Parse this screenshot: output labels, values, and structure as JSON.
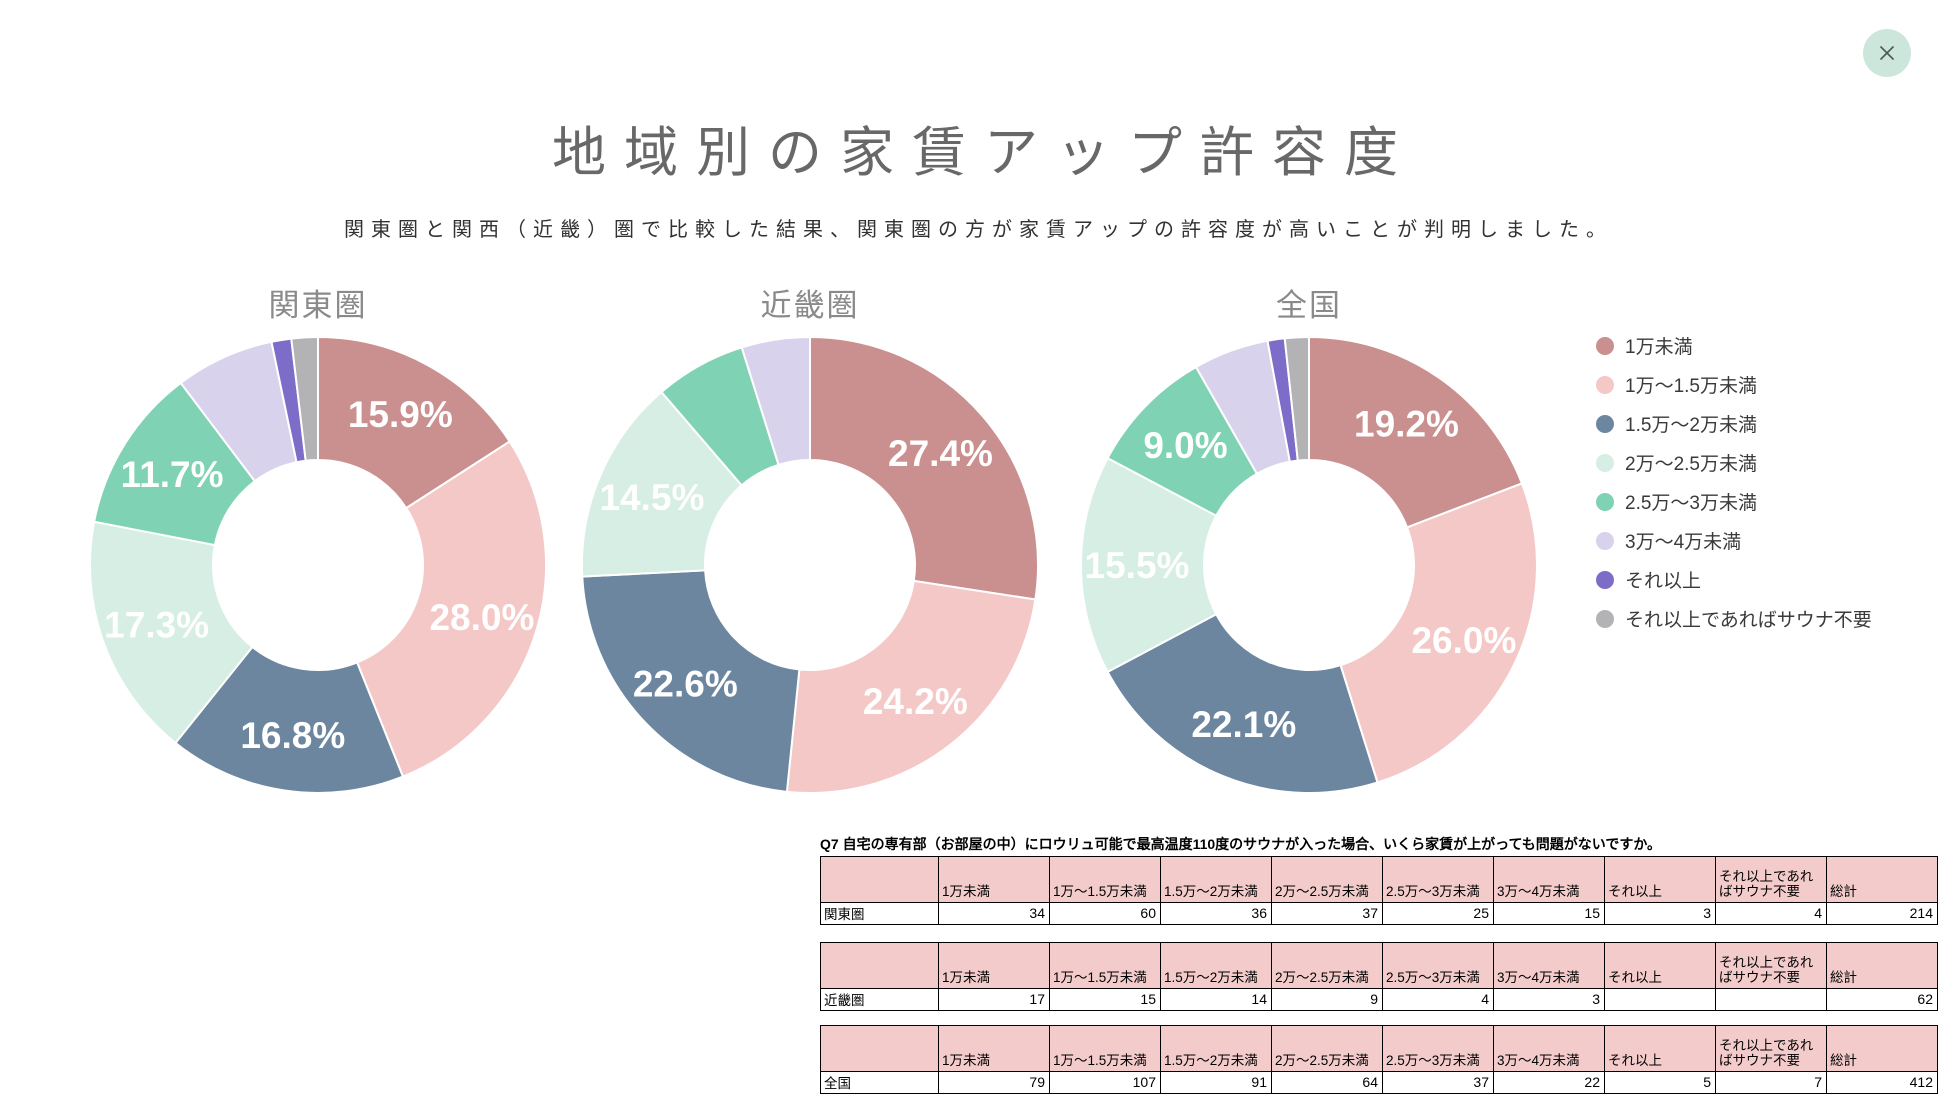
{
  "header": {
    "title": "地域別の家賃アップ許容度",
    "subtitle": "関東圏と関西（近畿）圏で比較した結果、関東圏の方が家賃アップの許容度が高いことが判明しました。"
  },
  "icons": {
    "close": "✕"
  },
  "colors": {
    "close_button_bg": "#cde6dc",
    "close_icon": "#4c5a54",
    "table_header_bg": "#f3cbcb",
    "title_text": "#686868",
    "chart_title_text": "#8a8a8a"
  },
  "chart_data": {
    "type": "donut",
    "legend_position": "right",
    "categories": [
      "1万未満",
      "1万〜1.5万未満",
      "1.5万〜2万未満",
      "2万〜2.5万未満",
      "2.5万〜3万未満",
      "3万〜4万未満",
      "それ以上",
      "それ以上であればサウナ不要"
    ],
    "colors": [
      "#ca8f8f",
      "#f4c8c7",
      "#6c86a0",
      "#d6eee4",
      "#7fd2b4",
      "#d8d2ec",
      "#7e6dc8",
      "#b3b3b6"
    ],
    "charts": [
      {
        "title": "関東圏",
        "total": 214,
        "values": [
          34,
          60,
          36,
          37,
          25,
          15,
          3,
          4
        ],
        "pct_labels": [
          "15.9%",
          "28.0%",
          "16.8%",
          "17.3%",
          "11.7%",
          null,
          null,
          null
        ]
      },
      {
        "title": "近畿圏",
        "total": 62,
        "values": [
          17,
          15,
          14,
          9,
          4,
          3,
          0,
          0
        ],
        "pct_labels": [
          "27.4%",
          "24.2%",
          "22.6%",
          "14.5%",
          null,
          null,
          null,
          null
        ]
      },
      {
        "title": "全国",
        "total": 412,
        "values": [
          79,
          107,
          91,
          64,
          37,
          22,
          5,
          7
        ],
        "pct_labels": [
          "19.2%",
          "26.0%",
          "22.1%",
          "15.5%",
          "9.0%",
          null,
          null,
          null
        ]
      }
    ]
  },
  "tables": {
    "caption": "Q7 自宅の専有部（お部屋の中）にロウリュ可能で最高温度110度のサウナが入った場合、いくら家賃が上がっても問題がないですか。",
    "columns": [
      "",
      "1万未満",
      "1万〜1.5万未満",
      "1.5万〜2万未満",
      "2万〜2.5万未満",
      "2.5万〜3万未満",
      "3万〜4万未満",
      "それ以上",
      "それ以上であればサウナ不要",
      "総計"
    ],
    "rows": [
      {
        "label": "関東圏",
        "values": [
          "34",
          "60",
          "36",
          "37",
          "25",
          "15",
          "3",
          "4",
          "214"
        ]
      },
      {
        "label": "近畿圏",
        "values": [
          "17",
          "15",
          "14",
          "9",
          "4",
          "3",
          "",
          "",
          "62"
        ]
      },
      {
        "label": "全国",
        "values": [
          "79",
          "107",
          "91",
          "64",
          "37",
          "22",
          "5",
          "7",
          "412"
        ]
      }
    ]
  }
}
